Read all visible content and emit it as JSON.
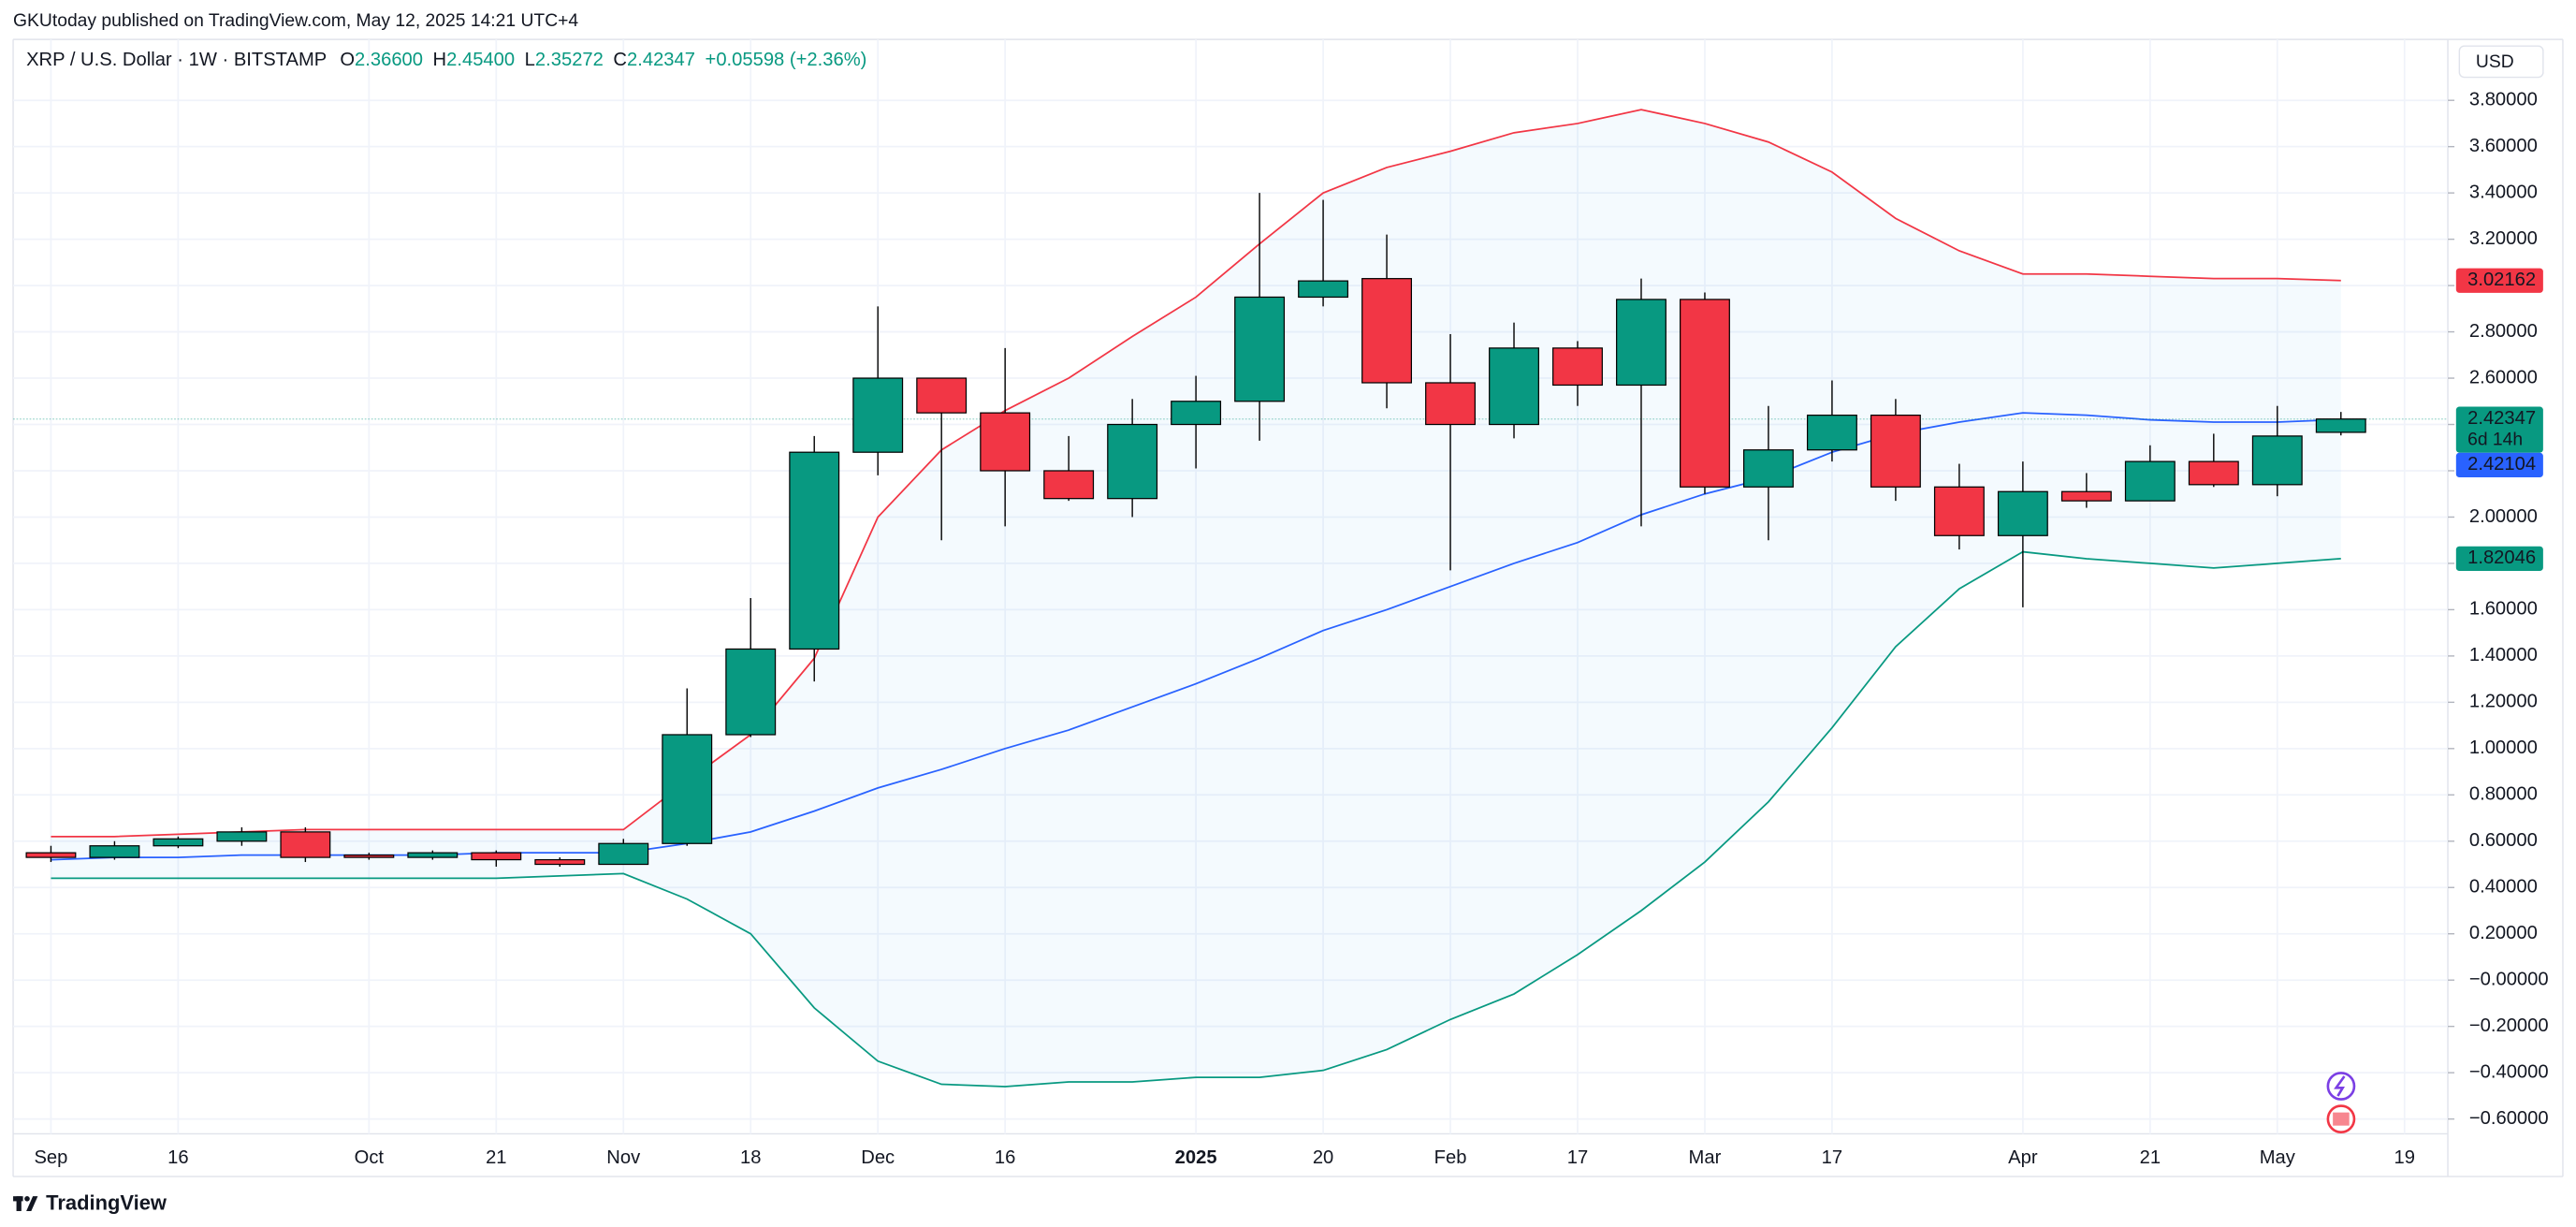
{
  "header": {
    "published": "GKUtoday published on TradingView.com, May 12, 2025 14:21 UTC+4",
    "currency": "USD",
    "brand": "TradingView"
  },
  "chart_data": {
    "type": "candlestick",
    "title": "XRP / U.S. Dollar · 1W · BITSTAMP",
    "ohlc_legend": [
      {
        "key": "O",
        "value": "2.36600"
      },
      {
        "key": "H",
        "value": "2.45400"
      },
      {
        "key": "L",
        "value": "2.35272"
      },
      {
        "key": "C",
        "value": "2.42347"
      }
    ],
    "change": "+0.05598 (+2.36%)",
    "categories": [
      "Sep",
      null,
      "16",
      null,
      null,
      "Oct",
      null,
      "21",
      null,
      "Nov",
      null,
      "18",
      null,
      "Dec",
      null,
      "16",
      null,
      null,
      "2025",
      null,
      "20",
      null,
      "Feb",
      null,
      "17",
      null,
      "Mar",
      null,
      "17",
      null,
      null,
      "Apr",
      null,
      "21",
      null,
      "May",
      null,
      "19"
    ],
    "open": [
      0.55,
      0.53,
      0.58,
      0.6,
      0.64,
      0.54,
      0.53,
      0.55,
      0.52,
      0.5,
      0.59,
      1.06,
      1.43,
      2.28,
      2.6,
      2.45,
      2.2,
      2.08,
      2.4,
      2.5,
      2.95,
      3.03,
      2.58,
      2.4,
      2.73,
      2.57,
      2.94,
      2.13,
      2.29,
      2.44,
      2.13,
      1.92,
      2.11,
      2.07,
      2.24,
      2.14,
      2.366,
      null
    ],
    "high": [
      0.58,
      0.6,
      0.62,
      0.66,
      0.66,
      0.55,
      0.56,
      0.56,
      0.53,
      0.61,
      1.26,
      1.65,
      2.35,
      2.91,
      2.6,
      2.73,
      2.35,
      2.51,
      2.61,
      3.4,
      3.37,
      3.22,
      2.79,
      2.84,
      2.76,
      3.03,
      2.97,
      2.48,
      2.59,
      2.51,
      2.23,
      2.24,
      2.19,
      2.31,
      2.36,
      2.48,
      2.454,
      null
    ],
    "low": [
      0.51,
      0.52,
      0.57,
      0.58,
      0.51,
      0.52,
      0.52,
      0.49,
      0.49,
      0.5,
      0.58,
      1.05,
      1.29,
      2.18,
      1.9,
      1.96,
      2.07,
      2.0,
      2.21,
      2.33,
      2.91,
      2.47,
      1.77,
      2.34,
      2.48,
      1.96,
      2.1,
      1.9,
      2.24,
      2.07,
      1.86,
      1.61,
      2.04,
      2.07,
      2.13,
      2.09,
      2.35272,
      null
    ],
    "close": [
      0.53,
      0.58,
      0.61,
      0.64,
      0.53,
      0.53,
      0.55,
      0.52,
      0.5,
      0.59,
      1.06,
      1.43,
      2.28,
      2.6,
      2.45,
      2.2,
      2.08,
      2.4,
      2.5,
      2.95,
      3.02,
      2.58,
      2.4,
      2.73,
      2.57,
      2.94,
      2.13,
      2.29,
      2.44,
      2.13,
      1.92,
      2.11,
      2.07,
      2.24,
      2.14,
      2.35,
      2.42347,
      null
    ],
    "up_color": "#089981",
    "down_color": "#f23645",
    "band_fill": "#2196f3",
    "series": [
      {
        "color": "#f23645",
        "values": [
          0.62,
          0.62,
          0.63,
          0.64,
          0.65,
          0.65,
          0.65,
          0.65,
          0.65,
          0.65,
          0.86,
          1.06,
          1.39,
          2.0,
          2.29,
          2.46,
          2.6,
          2.78,
          2.95,
          3.18,
          3.4,
          3.51,
          3.58,
          3.66,
          3.7,
          3.76,
          3.7,
          3.62,
          3.49,
          3.29,
          3.15,
          3.05,
          3.05,
          3.04,
          3.03,
          3.03,
          3.02162,
          null
        ]
      },
      {
        "color": "#2962ff",
        "values": [
          0.52,
          0.53,
          0.53,
          0.54,
          0.54,
          0.54,
          0.54,
          0.55,
          0.55,
          0.55,
          0.59,
          0.64,
          0.73,
          0.83,
          0.91,
          1.0,
          1.08,
          1.18,
          1.28,
          1.39,
          1.51,
          1.6,
          1.7,
          1.8,
          1.89,
          2.01,
          2.1,
          2.17,
          2.28,
          2.36,
          2.41,
          2.45,
          2.44,
          2.42,
          2.41,
          2.41,
          2.42104,
          null
        ]
      },
      {
        "color": "#089981",
        "values": [
          0.44,
          0.44,
          0.44,
          0.44,
          0.44,
          0.44,
          0.44,
          0.44,
          0.45,
          0.46,
          0.35,
          0.2,
          -0.12,
          -0.35,
          -0.45,
          -0.46,
          -0.44,
          -0.44,
          -0.42,
          -0.42,
          -0.39,
          -0.3,
          -0.17,
          -0.06,
          0.11,
          0.3,
          0.51,
          0.77,
          1.09,
          1.44,
          1.69,
          1.85,
          1.82,
          1.8,
          1.78,
          1.8,
          1.82046,
          null
        ]
      }
    ],
    "ylim": [
      -0.664,
      4.063
    ],
    "yticks": [
      {
        "value": 3.8,
        "label": "3.80000"
      },
      {
        "value": 3.6,
        "label": "3.60000"
      },
      {
        "value": 3.4,
        "label": "3.40000"
      },
      {
        "value": 3.2,
        "label": "3.20000"
      },
      {
        "value": 3.0,
        "label": "3.00000"
      },
      {
        "value": 2.8,
        "label": "2.80000"
      },
      {
        "value": 2.6,
        "label": "2.60000"
      },
      {
        "value": 2.4,
        "label": "2.40000"
      },
      {
        "value": 2.2,
        "label": "2.20000"
      },
      {
        "value": 2.0,
        "label": "2.00000"
      },
      {
        "value": 1.8,
        "label": "1.80000"
      },
      {
        "value": 1.6,
        "label": "1.60000"
      },
      {
        "value": 1.4,
        "label": "1.40000"
      },
      {
        "value": 1.2,
        "label": "1.20000"
      },
      {
        "value": 1.0,
        "label": "1.00000"
      },
      {
        "value": 0.8,
        "label": "0.80000"
      },
      {
        "value": 0.6,
        "label": "0.60000"
      },
      {
        "value": 0.4,
        "label": "0.40000"
      },
      {
        "value": 0.2,
        "label": "0.20000"
      },
      {
        "value": 0,
        "label": "−0.00000"
      },
      {
        "value": -0.2,
        "label": "−0.20000"
      },
      {
        "value": -0.4,
        "label": "−0.40000"
      },
      {
        "value": -0.6,
        "label": "−0.60000"
      }
    ],
    "grid": true,
    "price_labels": [
      {
        "value": 3.02162,
        "label": "3.02162",
        "color": "#f23645"
      },
      {
        "value": 2.42347,
        "label": "2.42347",
        "sublabel": "6d 14h",
        "color": "#089981"
      },
      {
        "value": 2.42104,
        "label": "2.42104",
        "color": "#2962ff"
      },
      {
        "value": 1.82046,
        "label": "1.82046",
        "color": "#089981"
      }
    ]
  }
}
